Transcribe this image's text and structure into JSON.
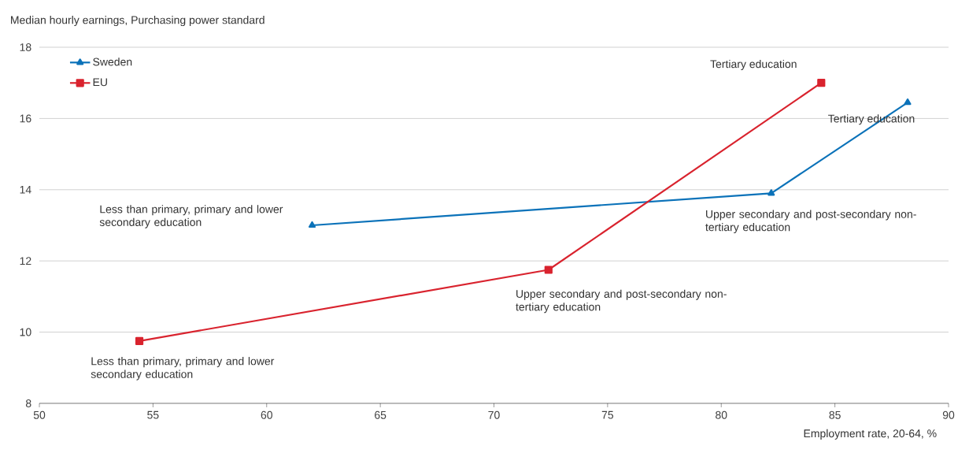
{
  "chart_data": {
    "type": "line",
    "xlabel": "Employment rate, 20-64, %",
    "ylabel": "Median hourly earnings, Purchasing power standard",
    "series": [
      {
        "name": "Sweden",
        "color": "#0b72b9",
        "marker": "triangle",
        "x": [
          62.0,
          82.2,
          88.2
        ],
        "values": [
          13.0,
          13.9,
          16.45
        ]
      },
      {
        "name": "EU",
        "color": "#d9232e",
        "marker": "square",
        "x": [
          54.4,
          72.4,
          84.4
        ],
        "values": [
          9.75,
          11.75,
          17.0
        ]
      }
    ],
    "annotations": [
      {
        "text": "Less than primary, primary and lower secondary education",
        "x": 62.0,
        "y": 13.0
      },
      {
        "text": "Upper secondary and post-secondary non-tertiary education",
        "x": 82.2,
        "y": 13.9
      },
      {
        "text": "Tertiary education",
        "x": 88.2,
        "y": 16.45
      },
      {
        "text": "Less than primary, primary and lower secondary education",
        "x": 54.4,
        "y": 9.75
      },
      {
        "text": "Upper secondary and post-secondary non-tertiary education",
        "x": 72.4,
        "y": 11.75
      },
      {
        "text": "Tertiary education",
        "x": 84.4,
        "y": 17.0
      }
    ],
    "xlim": [
      50,
      90
    ],
    "xticks": [
      50,
      55,
      60,
      65,
      70,
      75,
      80,
      85,
      90
    ],
    "ylim": [
      8,
      18
    ],
    "yticks": [
      8,
      10,
      12,
      14,
      16,
      18
    ],
    "grid": "y",
    "legend": "top left"
  }
}
